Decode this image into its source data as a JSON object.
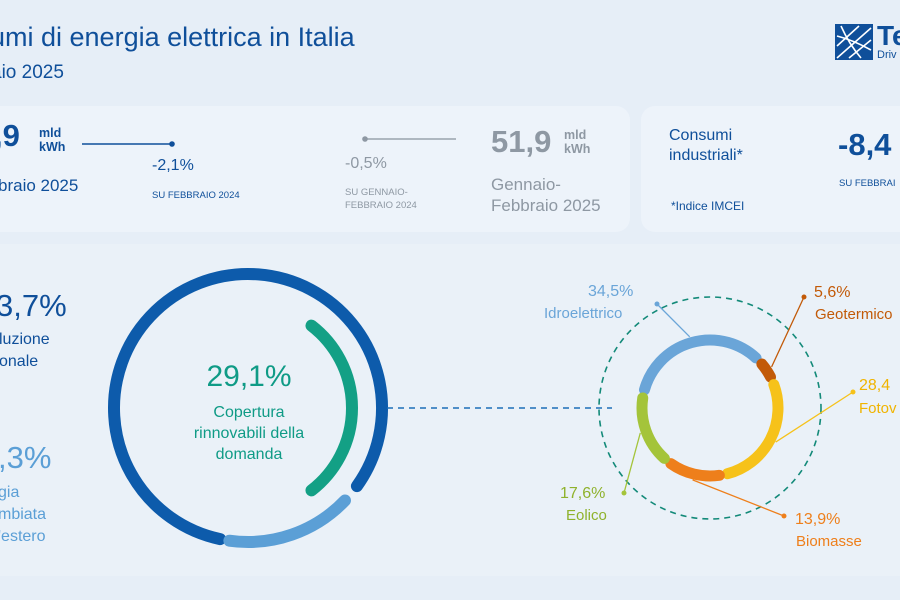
{
  "header": {
    "title": "umi di energia elettrica in Italia",
    "subtitle": "aio 2025",
    "logo_name": "Te",
    "logo_tag": "Driv"
  },
  "month_card": {
    "value": ",9",
    "unit_line1": "mld",
    "unit_line2": "kWh",
    "period": "braio 2025",
    "delta": "-2,1%",
    "delta_caption": "SU FEBBRAIO 2024"
  },
  "ytd_card": {
    "delta": "-0,5%",
    "delta_caption_line1": "SU GENNAIO-",
    "delta_caption_line2": "FEBBRAIO 2024",
    "value": "51,9",
    "unit_line1": "mld",
    "unit_line2": "kWh",
    "period_line1": "Gennaio-",
    "period_line2": "Febbraio 2025"
  },
  "industrial_card": {
    "label_line1": "Consumi",
    "label_line2": "industriali*",
    "note": "*Indice IMCEI",
    "value": "-8,4",
    "caption": "SU FEBBRAI"
  },
  "production": {
    "value": "3,7%",
    "label_line1": "luzione",
    "label_line2": "onale"
  },
  "imports": {
    "value": ",3%",
    "label_line1": "gia",
    "label_line2": "mbiata",
    "label_line3": "'estero"
  },
  "chart_data": [
    {
      "type": "pie",
      "subtype": "donut",
      "center_value": "29,1%",
      "center_label_line1": "Copertura",
      "center_label_line2": "rinnovabili della",
      "center_label_line3": "domanda",
      "slices": [
        {
          "share": 58.7,
          "color": "#0d5bab"
        },
        {
          "share": 12.3,
          "color": "#5b9fd6"
        },
        {
          "share": 29.1,
          "color": "#13a085"
        }
      ]
    },
    {
      "type": "pie",
      "subtype": "donut",
      "slices": [
        {
          "label": "Idroelettrico",
          "pct_text": "34,5%",
          "value": 34.5,
          "color": "#6aa5d8"
        },
        {
          "label": "Geotermico",
          "pct_text": "5,6%",
          "value": 5.6,
          "color": "#c25a08"
        },
        {
          "label": "Fotov",
          "pct_text": "28,4",
          "value": 28.4,
          "color": "#f6c21a"
        },
        {
          "label": "Biomasse",
          "pct_text": "13,9%",
          "value": 13.9,
          "color": "#ee7f1b"
        },
        {
          "label": "Eolico",
          "pct_text": "17,6%",
          "value": 17.6,
          "color": "#a4c43a"
        }
      ]
    }
  ]
}
